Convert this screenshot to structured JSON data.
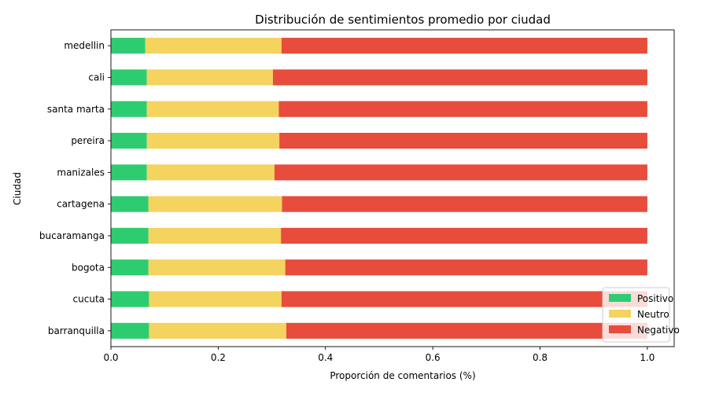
{
  "chart_data": {
    "type": "bar",
    "orientation": "horizontal",
    "stacked": true,
    "title": "Distribución de sentimientos promedio por ciudad",
    "xlabel": "Proporción de comentarios (%)",
    "ylabel": "Ciudad",
    "xlim": [
      0,
      1.05
    ],
    "xticks": [
      "0.0",
      "0.2",
      "0.4",
      "0.6",
      "0.8",
      "1.0"
    ],
    "grid": false,
    "legend_position": "bottom-right",
    "categories": [
      "barranquilla",
      "cucuta",
      "bogota",
      "bucaramanga",
      "cartagena",
      "manizales",
      "pereira",
      "santa marta",
      "cali",
      "medellin"
    ],
    "series": [
      {
        "name": "Positivo",
        "color": "#2ecc71",
        "values": [
          0.071,
          0.071,
          0.07,
          0.07,
          0.07,
          0.067,
          0.067,
          0.067,
          0.067,
          0.064
        ]
      },
      {
        "name": "Neutro",
        "color": "#f4d35e",
        "values": [
          0.256,
          0.247,
          0.255,
          0.247,
          0.249,
          0.238,
          0.247,
          0.246,
          0.235,
          0.254
        ]
      },
      {
        "name": "Negativo",
        "color": "#e74c3c",
        "values": [
          0.673,
          0.682,
          0.675,
          0.683,
          0.681,
          0.695,
          0.686,
          0.687,
          0.698,
          0.682
        ]
      }
    ]
  }
}
